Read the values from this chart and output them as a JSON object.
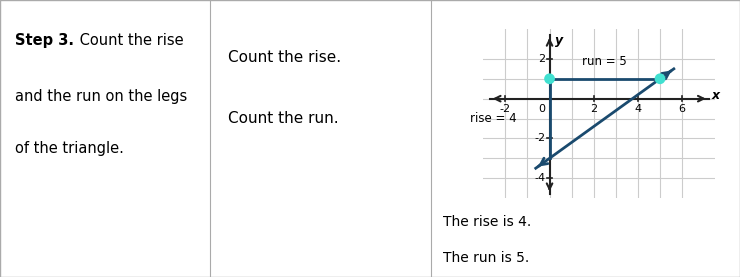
{
  "left_bg_color": "#8FAFC4",
  "left_bold": "Step 3.",
  "left_rest": " Count the rise\nand the run on the legs\nof the triangle.",
  "middle_lines": [
    "Count the rise.",
    "Count the run."
  ],
  "bottom_lines": [
    "The rise is 4.",
    "The run is 5."
  ],
  "divider1": 0.284,
  "divider2": 0.582,
  "graph": {
    "xlim": [
      -3,
      7.5
    ],
    "ylim": [
      -5.0,
      3.5
    ],
    "grid_xmin": -2,
    "grid_xmax": 6,
    "grid_ymin": -4,
    "grid_ymax": 2,
    "axis_color": "#222222",
    "line_color": "#1a4a6e",
    "dot_color": "#40E0D0",
    "dot_size": 60,
    "point1": [
      0,
      -3
    ],
    "point2": [
      5,
      1
    ],
    "rise_label": "rise = 4",
    "run_label": "run = 5",
    "xlabel": "x",
    "ylabel": "y",
    "xtick_labels": [
      "-2",
      "0",
      "2",
      "4",
      "6"
    ],
    "xtick_vals": [
      -2,
      0,
      2,
      4,
      6
    ],
    "ytick_labels": [
      "-4",
      "-2",
      "2"
    ],
    "ytick_vals": [
      -4,
      -2,
      2
    ]
  }
}
